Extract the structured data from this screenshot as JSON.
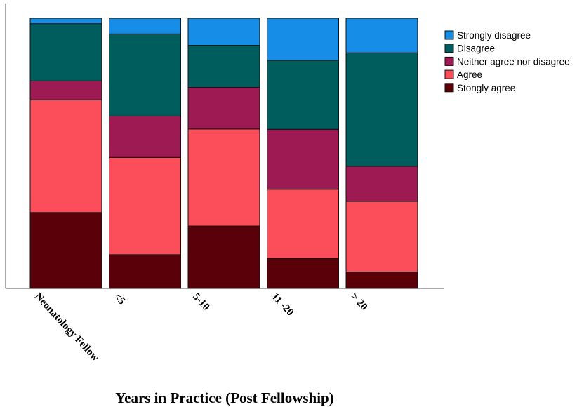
{
  "chart_data": {
    "type": "bar",
    "stacked": true,
    "normalized_percent": true,
    "title": "",
    "xlabel": "Years in Practice (Post Fellowship)",
    "ylabel": "",
    "ylim": [
      0,
      100
    ],
    "grid": false,
    "legend_position": "top-right",
    "categories": [
      "Neonatology Fellow",
      "<5",
      "5-10",
      "11 -20",
      "> 20"
    ],
    "series": [
      {
        "name": "Stongly agree",
        "color": "#5a0009",
        "values": [
          28.1,
          12.5,
          23.1,
          11.1,
          6.1
        ]
      },
      {
        "name": "Agree",
        "color": "#fc4e5a",
        "values": [
          41.7,
          36.0,
          35.9,
          25.6,
          26.1
        ]
      },
      {
        "name": "Neither agree nor disagree",
        "color": "#9d1a52",
        "values": [
          7.0,
          15.3,
          15.4,
          22.2,
          13.0
        ]
      },
      {
        "name": "Disagree",
        "color": "#005d5d",
        "values": [
          21.2,
          30.4,
          15.6,
          25.5,
          42.0
        ]
      },
      {
        "name": "Strongly disagree",
        "color": "#168ee7",
        "values": [
          2.0,
          5.8,
          10.0,
          15.6,
          12.8
        ]
      }
    ],
    "legend_order": [
      "Strongly disagree",
      "Disagree",
      "Neither agree nor disagree",
      "Agree",
      "Stongly agree"
    ]
  }
}
